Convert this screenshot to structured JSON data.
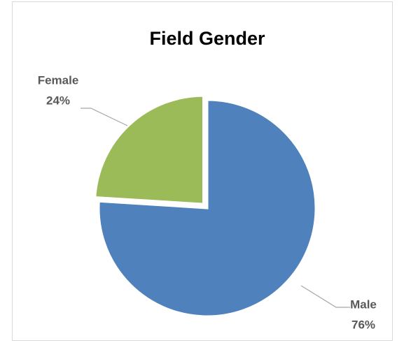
{
  "chart_data": {
    "type": "pie",
    "title": "Field Gender",
    "categories": [
      "Male",
      "Female"
    ],
    "values": [
      76,
      24
    ],
    "value_labels": [
      "76%",
      "24%"
    ],
    "colors": [
      "#4f81bd",
      "#9bbb59"
    ]
  }
}
